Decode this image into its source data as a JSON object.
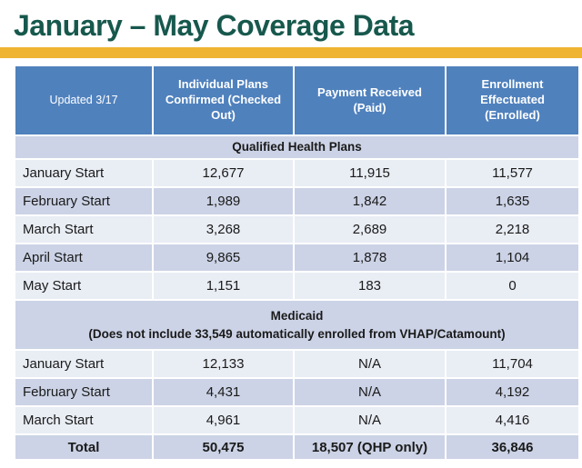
{
  "slide": {
    "title": "January – May Coverage Data"
  },
  "colors": {
    "title_green": "#17584D",
    "accent_gold": "#F0B433",
    "header_blue": "#4F81BD",
    "band_dark": "#CCD3E6",
    "band_light": "#E9EDF4"
  },
  "table": {
    "updated_label": "Updated 3/17",
    "columns": [
      "Individual Plans Confirmed (Checked Out)",
      "Payment Received (Paid)",
      "Enrollment Effectuated (Enrolled)"
    ],
    "qhp": {
      "section_title": "Qualified Health Plans",
      "rows": [
        {
          "label": "January Start",
          "values": [
            "12,677",
            "11,915",
            "11,577"
          ]
        },
        {
          "label": "February Start",
          "values": [
            "1,989",
            "1,842",
            "1,635"
          ]
        },
        {
          "label": "March Start",
          "values": [
            "3,268",
            "2,689",
            "2,218"
          ]
        },
        {
          "label": "April Start",
          "values": [
            "9,865",
            "1,878",
            "1,104"
          ]
        },
        {
          "label": "May Start",
          "values": [
            "1,151",
            "183",
            "0"
          ]
        }
      ]
    },
    "medicaid": {
      "section_title": "Medicaid",
      "section_note": "(Does not include 33,549 automatically enrolled from VHAP/Catamount)",
      "rows": [
        {
          "label": "January Start",
          "values": [
            "12,133",
            "N/A",
            "11,704"
          ]
        },
        {
          "label": "February Start",
          "values": [
            "4,431",
            "N/A",
            "4,192"
          ]
        },
        {
          "label": "March Start",
          "values": [
            "4,961",
            "N/A",
            "4,416"
          ]
        }
      ]
    },
    "total": {
      "label": "Total",
      "values": [
        "50,475",
        "18,507 (QHP only)",
        "36,846"
      ]
    }
  },
  "chart_data": {
    "type": "table",
    "title": "January – May Coverage Data",
    "updated": "Updated 3/17",
    "columns": [
      "Individual Plans Confirmed (Checked Out)",
      "Payment Received (Paid)",
      "Enrollment Effectuated (Enrolled)"
    ],
    "sections": [
      {
        "name": "Qualified Health Plans",
        "rows": [
          [
            "January Start",
            12677,
            11915,
            11577
          ],
          [
            "February Start",
            1989,
            1842,
            1635
          ],
          [
            "March Start",
            3268,
            2689,
            2218
          ],
          [
            "April Start",
            9865,
            1878,
            1104
          ],
          [
            "May Start",
            1151,
            183,
            0
          ]
        ]
      },
      {
        "name": "Medicaid (Does not include 33,549 automatically enrolled from VHAP/Catamount)",
        "rows": [
          [
            "January Start",
            12133,
            "N/A",
            11704
          ],
          [
            "February Start",
            4431,
            "N/A",
            4192
          ],
          [
            "March Start",
            4961,
            "N/A",
            4416
          ]
        ]
      }
    ],
    "total": [
      "Total",
      "50,475",
      "18,507 (QHP only)",
      "36,846"
    ]
  }
}
